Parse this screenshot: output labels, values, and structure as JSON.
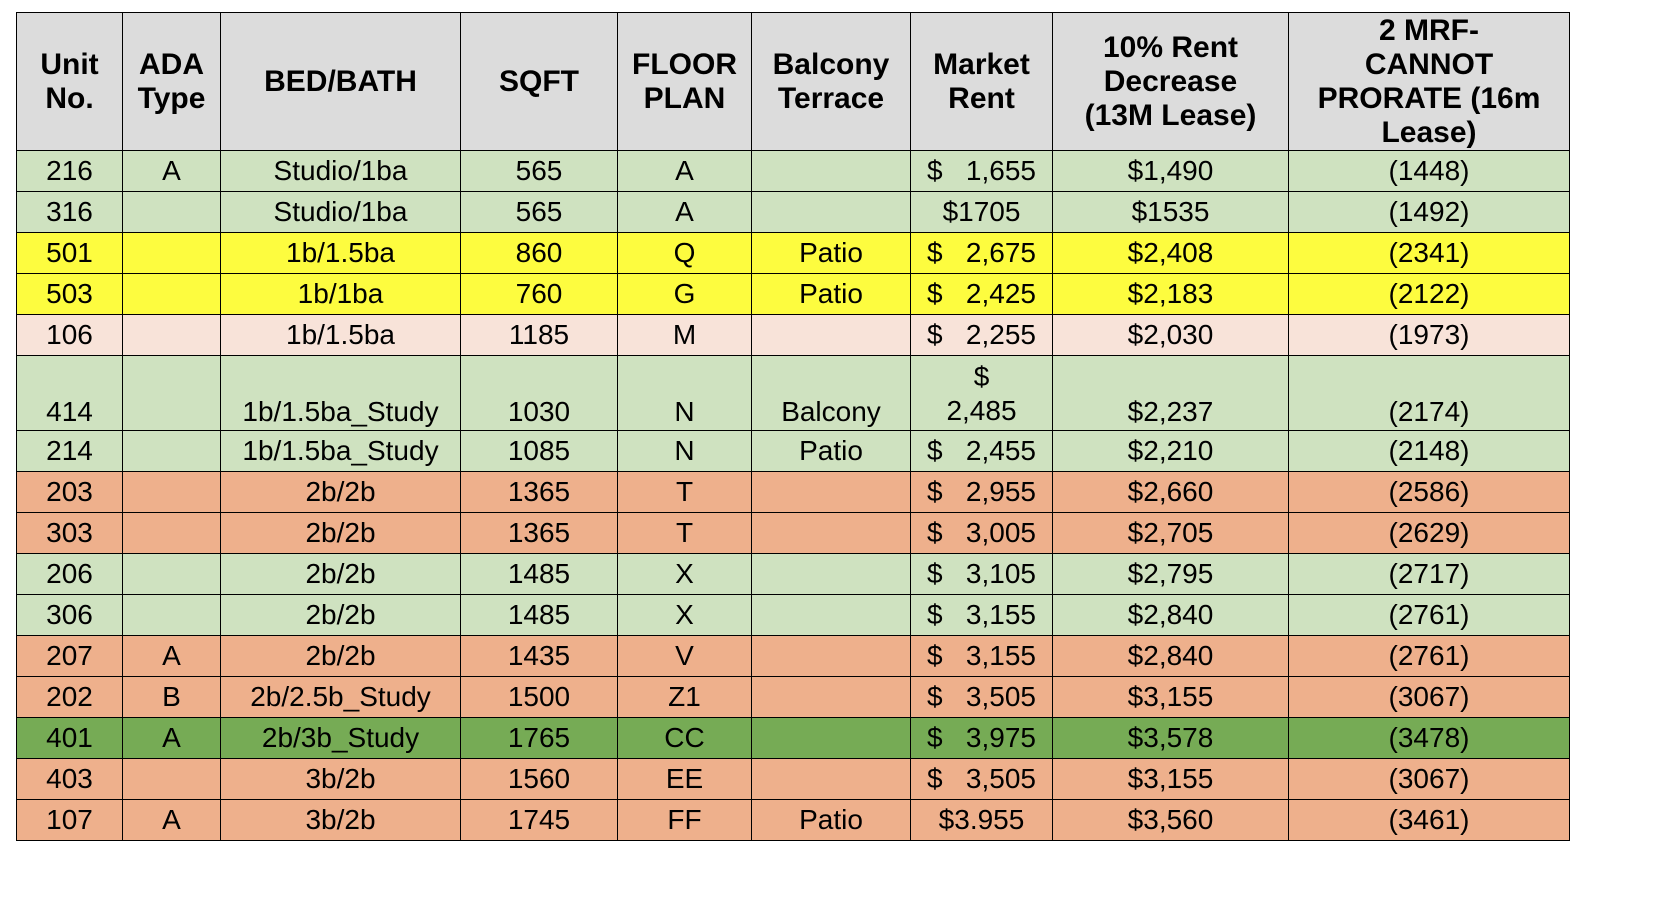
{
  "table": {
    "headers": [
      [
        "Unit",
        "No."
      ],
      [
        "ADA",
        "Type"
      ],
      [
        "BED/BATH"
      ],
      [
        "SQFT"
      ],
      [
        "FLOOR",
        "PLAN"
      ],
      [
        "Balcony",
        "Terrace"
      ],
      [
        "Market",
        "Rent"
      ],
      [
        "10% Rent",
        "Decrease",
        "(13M Lease)"
      ],
      [
        "2 MRF-",
        "CANNOT",
        "PRORATE (16m",
        "Lease)"
      ]
    ],
    "header_color": "#dcdcdc",
    "rows": [
      {
        "unit": "216",
        "ada": "A",
        "bedbath": "Studio/1ba",
        "sqft": "565",
        "plan": "A",
        "balcony": "",
        "rent_symbol": "$",
        "rent_amount": "1,655",
        "rent_text": "",
        "decrease": "$1,490",
        "mrf": "(1448)",
        "color": "#cfe2c0"
      },
      {
        "unit": "316",
        "ada": "",
        "bedbath": "Studio/1ba",
        "sqft": "565",
        "plan": "A",
        "balcony": "",
        "rent_symbol": "",
        "rent_amount": "",
        "rent_text": "$1705",
        "decrease": "$1535",
        "mrf": "(1492)",
        "color": "#cfe2c0"
      },
      {
        "unit": "501",
        "ada": "",
        "bedbath": "1b/1.5ba",
        "sqft": "860",
        "plan": "Q",
        "balcony": "Patio",
        "rent_symbol": "$",
        "rent_amount": "2,675",
        "rent_text": "",
        "decrease": "$2,408",
        "mrf": "(2341)",
        "color": "#fdfc3f"
      },
      {
        "unit": "503",
        "ada": "",
        "bedbath": "1b/1ba",
        "sqft": "760",
        "plan": "G",
        "balcony": "Patio",
        "rent_symbol": "$",
        "rent_amount": "2,425",
        "rent_text": "",
        "decrease": "$2,183",
        "mrf": "(2122)",
        "color": "#fdfc3f"
      },
      {
        "unit": "106",
        "ada": "",
        "bedbath": "1b/1.5ba",
        "sqft": "1185",
        "plan": "M",
        "balcony": "",
        "rent_symbol": "$",
        "rent_amount": "2,255",
        "rent_text": "",
        "decrease": "$2,030",
        "mrf": "(1973)",
        "color": "#f8e3d9"
      },
      {
        "unit": "414",
        "ada": "",
        "bedbath": "1b/1.5ba_Study",
        "sqft": "1030",
        "plan": "N",
        "balcony": "Balcony",
        "rent_symbol": "$",
        "rent_amount": "2,485",
        "rent_text": "",
        "decrease": "$2,237",
        "mrf": "(2174)",
        "color": "#cfe2c0",
        "tall": true
      },
      {
        "unit": "214",
        "ada": "",
        "bedbath": "1b/1.5ba_Study",
        "sqft": "1085",
        "plan": "N",
        "balcony": "Patio",
        "rent_symbol": "$",
        "rent_amount": "2,455",
        "rent_text": "",
        "decrease": "$2,210",
        "mrf": "(2148)",
        "color": "#cfe2c0"
      },
      {
        "unit": "203",
        "ada": "",
        "bedbath": "2b/2b",
        "sqft": "1365",
        "plan": "T",
        "balcony": "",
        "rent_symbol": "$",
        "rent_amount": "2,955",
        "rent_text": "",
        "decrease": "$2,660",
        "mrf": "(2586)",
        "color": "#eeb08c"
      },
      {
        "unit": "303",
        "ada": "",
        "bedbath": "2b/2b",
        "sqft": "1365",
        "plan": "T",
        "balcony": "",
        "rent_symbol": "$",
        "rent_amount": "3,005",
        "rent_text": "",
        "decrease": "$2,705",
        "mrf": "(2629)",
        "color": "#eeb08c"
      },
      {
        "unit": "206",
        "ada": "",
        "bedbath": "2b/2b",
        "sqft": "1485",
        "plan": "X",
        "balcony": "",
        "rent_symbol": "$",
        "rent_amount": "3,105",
        "rent_text": "",
        "decrease": "$2,795",
        "mrf": "(2717)",
        "color": "#cfe2c0"
      },
      {
        "unit": "306",
        "ada": "",
        "bedbath": "2b/2b",
        "sqft": "1485",
        "plan": "X",
        "balcony": "",
        "rent_symbol": "$",
        "rent_amount": "3,155",
        "rent_text": "",
        "decrease": "$2,840",
        "mrf": "(2761)",
        "color": "#cfe2c0"
      },
      {
        "unit": "207",
        "ada": "A",
        "bedbath": "2b/2b",
        "sqft": "1435",
        "plan": "V",
        "balcony": "",
        "rent_symbol": "$",
        "rent_amount": "3,155",
        "rent_text": "",
        "decrease": "$2,840",
        "mrf": "(2761)",
        "color": "#eeb08c"
      },
      {
        "unit": "202",
        "ada": "B",
        "bedbath": "2b/2.5b_Study",
        "sqft": "1500",
        "plan": "Z1",
        "balcony": "",
        "rent_symbol": "$",
        "rent_amount": "3,505",
        "rent_text": "",
        "decrease": "$3,155",
        "mrf": "(3067)",
        "color": "#eeb08c"
      },
      {
        "unit": "401",
        "ada": "A",
        "bedbath": "2b/3b_Study",
        "sqft": "1765",
        "plan": "CC",
        "balcony": "",
        "rent_symbol": "$",
        "rent_amount": "3,975",
        "rent_text": "",
        "decrease": "$3,578",
        "mrf": "(3478)",
        "color": "#76ab55"
      },
      {
        "unit": "403",
        "ada": "",
        "bedbath": "3b/2b",
        "sqft": "1560",
        "plan": "EE",
        "balcony": "",
        "rent_symbol": "$",
        "rent_amount": "3,505",
        "rent_text": "",
        "decrease": "$3,155",
        "mrf": "(3067)",
        "color": "#eeb08c"
      },
      {
        "unit": "107",
        "ada": "A",
        "bedbath": "3b/2b",
        "sqft": "1745",
        "plan": "FF",
        "balcony": "Patio",
        "rent_symbol": "",
        "rent_amount": "",
        "rent_text": "$3.955",
        "decrease": "$3,560",
        "mrf": "(3461)",
        "color": "#eeb08c"
      }
    ]
  }
}
